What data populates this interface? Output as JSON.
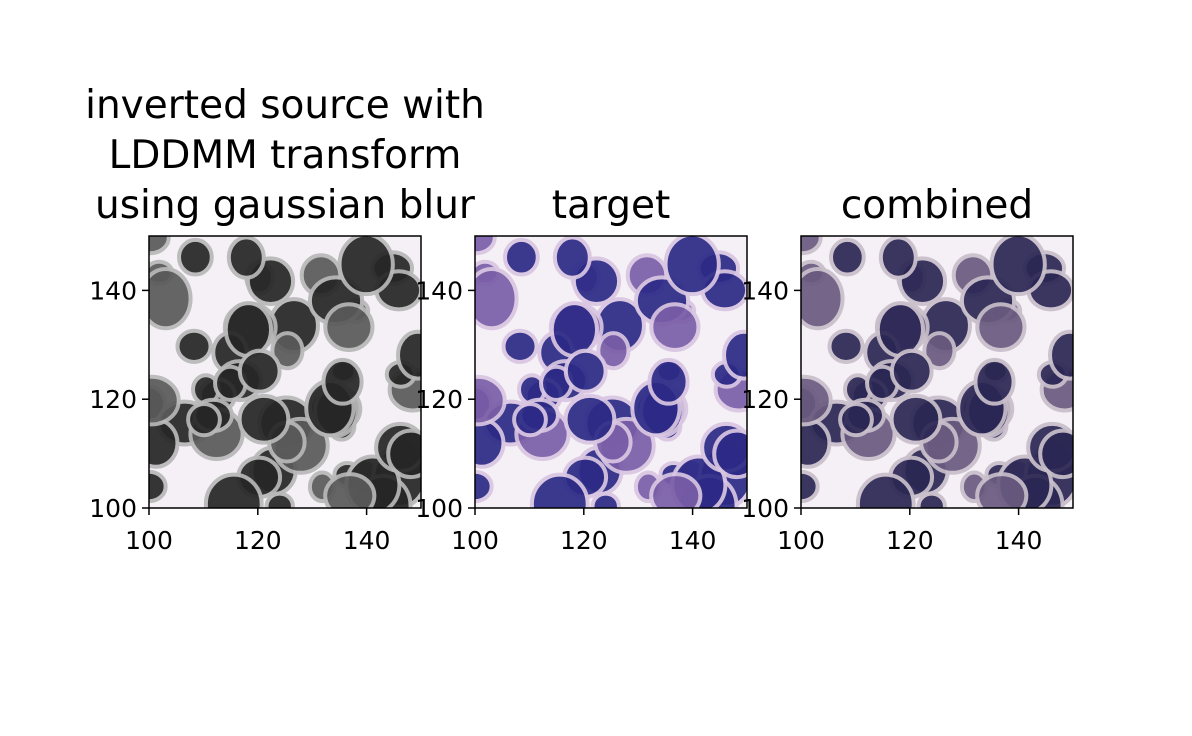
{
  "chart_data": [
    {
      "type": "image",
      "title": [
        "inverted source with",
        "LDDMM transform",
        "using gaussian blur"
      ],
      "xlim": [
        100,
        150
      ],
      "ylim": [
        100,
        150
      ],
      "xticks": [
        100,
        120,
        140
      ],
      "yticks": [
        100,
        120,
        140
      ]
    },
    {
      "type": "image",
      "title": [
        "target"
      ],
      "xlim": [
        100,
        150
      ],
      "ylim": [
        100,
        150
      ],
      "xticks": [
        100,
        120,
        140
      ],
      "yticks": [
        100,
        120,
        140
      ]
    },
    {
      "type": "image",
      "title": [
        "combined"
      ],
      "xlim": [
        100,
        150
      ],
      "ylim": [
        100,
        150
      ],
      "xticks": [
        100,
        120,
        140
      ],
      "yticks": [
        100,
        120,
        140
      ]
    }
  ]
}
